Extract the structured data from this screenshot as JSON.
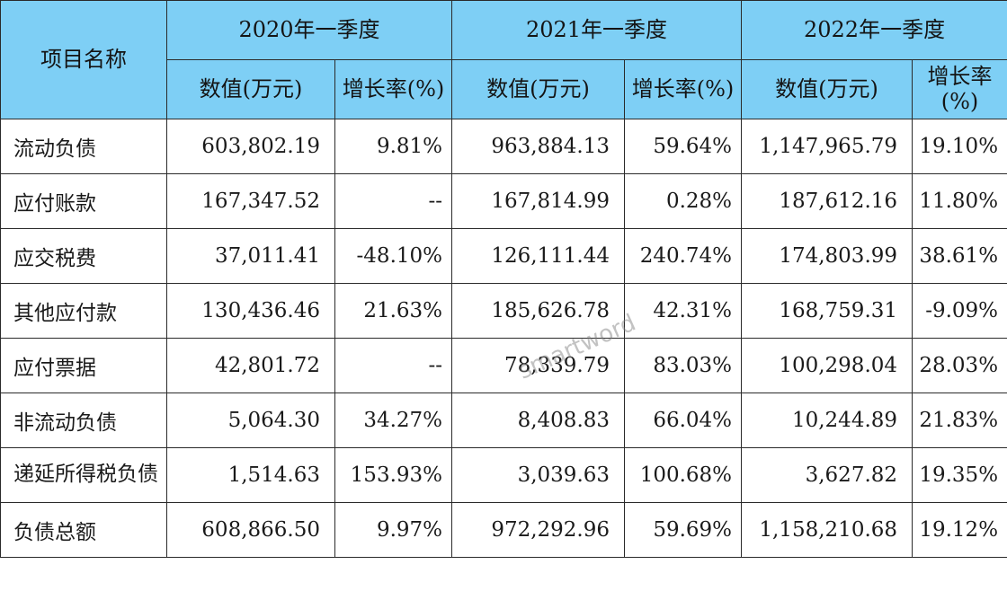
{
  "header": {
    "item_name": "项目名称",
    "periods": [
      "2020年一季度",
      "2021年一季度",
      "2022年一季度"
    ],
    "value_label": "数值(万元)",
    "growth_label": "增长率(%)"
  },
  "rows": [
    {
      "name": "流动负债",
      "cells": [
        "603,802.19",
        "9.81%",
        "963,884.13",
        "59.64%",
        "1,147,965.79",
        "19.10%"
      ]
    },
    {
      "name": "应付账款",
      "cells": [
        "167,347.52",
        "--",
        "167,814.99",
        "0.28%",
        "187,612.16",
        "11.80%"
      ]
    },
    {
      "name": "应交税费",
      "cells": [
        "37,011.41",
        "-48.10%",
        "126,111.44",
        "240.74%",
        "174,803.99",
        "38.61%"
      ]
    },
    {
      "name": "其他应付款",
      "cells": [
        "130,436.46",
        "21.63%",
        "185,626.78",
        "42.31%",
        "168,759.31",
        "-9.09%"
      ]
    },
    {
      "name": "应付票据",
      "cells": [
        "42,801.72",
        "--",
        "78,339.79",
        "83.03%",
        "100,298.04",
        "28.03%"
      ]
    },
    {
      "name": "非流动负债",
      "cells": [
        "5,064.30",
        "34.27%",
        "8,408.83",
        "66.04%",
        "10,244.89",
        "21.83%"
      ]
    },
    {
      "name": "递延所得税负债",
      "cells": [
        "1,514.63",
        "153.93%",
        "3,039.63",
        "100.68%",
        "3,627.82",
        "19.35%"
      ]
    },
    {
      "name": "负债总额",
      "cells": [
        "608,866.50",
        "9.97%",
        "972,292.96",
        "59.69%",
        "1,158,210.68",
        "19.12%"
      ]
    }
  ],
  "watermark": "smartword",
  "colors": {
    "header_bg": "#7ecff5",
    "border": "#2a2a2a"
  }
}
